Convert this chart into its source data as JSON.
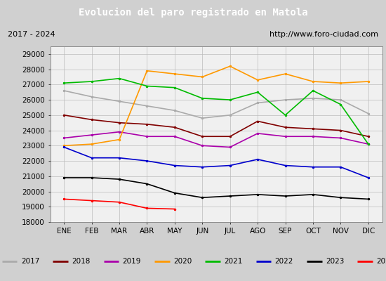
{
  "title": "Evolucion del paro registrado en Matola",
  "title_color": "#ffffff",
  "title_bg": "#4a90d9",
  "subtitle_left": "2017 - 2024",
  "subtitle_right": "http://www.foro-ciudad.com",
  "months": [
    "ENE",
    "FEB",
    "MAR",
    "ABR",
    "MAY",
    "JUN",
    "JUL",
    "AGO",
    "SEP",
    "OCT",
    "NOV",
    "DIC"
  ],
  "ylim": [
    18000,
    29500
  ],
  "yticks": [
    18000,
    19000,
    20000,
    21000,
    22000,
    23000,
    24000,
    25000,
    26000,
    27000,
    28000,
    29000
  ],
  "series": {
    "2017": {
      "color": "#aaaaaa",
      "data": [
        26600,
        26200,
        25900,
        25600,
        25300,
        24800,
        25000,
        25800,
        26000,
        26100,
        26000,
        25100
      ]
    },
    "2018": {
      "color": "#800000",
      "data": [
        25000,
        24700,
        24500,
        24400,
        24200,
        23600,
        23600,
        24600,
        24200,
        24100,
        24000,
        23600
      ]
    },
    "2019": {
      "color": "#aa00aa",
      "data": [
        23500,
        23700,
        23900,
        23600,
        23600,
        23000,
        22900,
        23800,
        23600,
        23600,
        23500,
        23100
      ]
    },
    "2020": {
      "color": "#ff9900",
      "data": [
        23000,
        23100,
        23400,
        27900,
        27700,
        27500,
        28200,
        27300,
        27700,
        27200,
        27100,
        27200
      ]
    },
    "2021": {
      "color": "#00bb00",
      "data": [
        27100,
        27200,
        27400,
        26900,
        26800,
        26100,
        26000,
        26500,
        25000,
        26600,
        25700,
        23100
      ]
    },
    "2022": {
      "color": "#0000cc",
      "data": [
        22900,
        22200,
        22200,
        22000,
        21700,
        21600,
        21700,
        22100,
        21700,
        21600,
        21600,
        20900
      ]
    },
    "2023": {
      "color": "#000000",
      "data": [
        20900,
        20900,
        20800,
        20500,
        19900,
        19600,
        19700,
        19800,
        19700,
        19800,
        19600,
        19500
      ]
    },
    "2024": {
      "color": "#ff0000",
      "data": [
        19500,
        19400,
        19300,
        18900,
        18850,
        null,
        null,
        null,
        null,
        null,
        null,
        null
      ]
    }
  }
}
